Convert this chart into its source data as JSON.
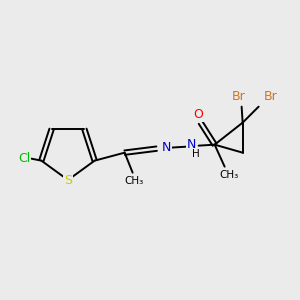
{
  "background_color": "#ebebeb",
  "atom_colors": {
    "C": "#000000",
    "N": "#0000cc",
    "O": "#ff0000",
    "S": "#cccc00",
    "Cl": "#00bb00",
    "Br": "#cc7722",
    "H": "#000000"
  },
  "bond_color": "#000000",
  "bond_lw": 1.4,
  "font_size": 9
}
